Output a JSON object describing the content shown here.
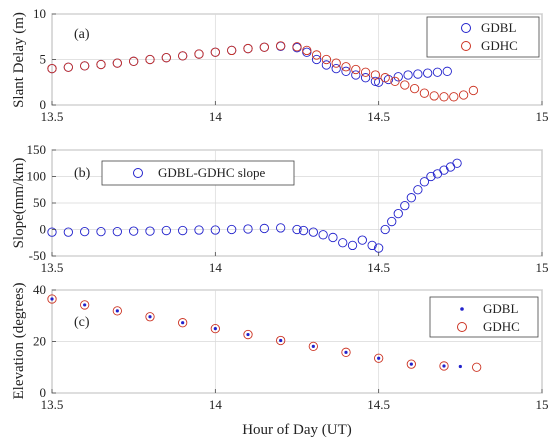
{
  "figure": {
    "xlabel": "Hour of Day (UT)"
  },
  "chart_data": [
    {
      "type": "scatter",
      "panel": "(a)",
      "ylabel": "Slant Delay (m)",
      "xlim": [
        13.5,
        15
      ],
      "ylim": [
        0,
        10
      ],
      "xticks": [
        "13.5",
        "14",
        "14.5",
        "15"
      ],
      "yticks": [
        "0",
        "5",
        "10"
      ],
      "grid": true,
      "legend_position": "top-right",
      "series": [
        {
          "name": "GDBL",
          "marker": "open-circle",
          "color": "#2222cc",
          "x": [
            13.5,
            13.55,
            13.6,
            13.65,
            13.7,
            13.75,
            13.8,
            13.85,
            13.9,
            13.95,
            14.0,
            14.05,
            14.1,
            14.15,
            14.2,
            14.25,
            14.28,
            14.31,
            14.34,
            14.37,
            14.4,
            14.43,
            14.46,
            14.49,
            14.5,
            14.53,
            14.56,
            14.59,
            14.62,
            14.65,
            14.68,
            14.71
          ],
          "y": [
            4.0,
            4.15,
            4.3,
            4.45,
            4.6,
            4.8,
            5.0,
            5.2,
            5.4,
            5.6,
            5.8,
            6.0,
            6.2,
            6.35,
            6.45,
            6.3,
            5.8,
            5.0,
            4.4,
            4.0,
            3.7,
            3.3,
            3.0,
            2.6,
            2.5,
            2.8,
            3.1,
            3.3,
            3.4,
            3.5,
            3.6,
            3.7
          ]
        },
        {
          "name": "GDHC",
          "marker": "open-circle",
          "color": "#cc3322",
          "x": [
            13.5,
            13.55,
            13.6,
            13.65,
            13.7,
            13.75,
            13.8,
            13.85,
            13.9,
            13.95,
            14.0,
            14.05,
            14.1,
            14.15,
            14.2,
            14.25,
            14.28,
            14.31,
            14.34,
            14.37,
            14.4,
            14.43,
            14.46,
            14.49,
            14.52,
            14.55,
            14.58,
            14.61,
            14.64,
            14.67,
            14.7,
            14.73,
            14.76,
            14.79
          ],
          "y": [
            4.0,
            4.15,
            4.3,
            4.45,
            4.6,
            4.8,
            5.0,
            5.2,
            5.4,
            5.6,
            5.8,
            6.0,
            6.2,
            6.35,
            6.5,
            6.4,
            6.0,
            5.5,
            5.0,
            4.6,
            4.2,
            3.9,
            3.6,
            3.3,
            3.0,
            2.6,
            2.2,
            1.8,
            1.3,
            1.0,
            0.9,
            0.9,
            1.1,
            1.6
          ]
        }
      ]
    },
    {
      "type": "scatter",
      "panel": "(b)",
      "ylabel": "Slope(mm/km)",
      "xlim": [
        13.5,
        15
      ],
      "ylim": [
        -50,
        150
      ],
      "xticks": [
        "13.5",
        "14",
        "14.5",
        "15"
      ],
      "yticks": [
        "-50",
        "0",
        "50",
        "100",
        "150"
      ],
      "grid": true,
      "legend_position": "top-left",
      "series": [
        {
          "name": "GDBL-GDHC slope",
          "marker": "open-circle",
          "color": "#2222cc",
          "x": [
            13.5,
            13.55,
            13.6,
            13.65,
            13.7,
            13.75,
            13.8,
            13.85,
            13.9,
            13.95,
            14.0,
            14.05,
            14.1,
            14.15,
            14.2,
            14.25,
            14.27,
            14.3,
            14.33,
            14.36,
            14.39,
            14.42,
            14.45,
            14.48,
            14.5,
            14.52,
            14.54,
            14.56,
            14.58,
            14.6,
            14.62,
            14.64,
            14.66,
            14.68,
            14.7,
            14.72,
            14.74
          ],
          "y": [
            -5,
            -5,
            -4,
            -4,
            -4,
            -3,
            -3,
            -2,
            -2,
            -1,
            -1,
            0,
            1,
            2,
            3,
            0,
            -2,
            -5,
            -10,
            -15,
            -25,
            -30,
            -20,
            -30,
            -35,
            0,
            15,
            30,
            45,
            60,
            75,
            90,
            100,
            105,
            112,
            118,
            125
          ]
        }
      ]
    },
    {
      "type": "scatter",
      "panel": "(c)",
      "ylabel": "Elevation (degrees)",
      "xlim": [
        13.5,
        15
      ],
      "ylim": [
        0,
        40
      ],
      "xticks": [
        "13.5",
        "14",
        "14.5",
        "15"
      ],
      "yticks": [
        "0",
        "20",
        "40"
      ],
      "grid": true,
      "legend_position": "bottom-right",
      "series": [
        {
          "name": "GDBL",
          "marker": "dot",
          "color": "#2222cc",
          "x": [
            13.5,
            13.6,
            13.7,
            13.8,
            13.9,
            14.0,
            14.1,
            14.2,
            14.3,
            14.4,
            14.5,
            14.6,
            14.7,
            14.75
          ],
          "y": [
            36.5,
            34.2,
            31.9,
            29.6,
            27.3,
            25.0,
            22.7,
            20.4,
            18.1,
            15.8,
            13.5,
            11.2,
            10.5,
            10.3
          ]
        },
        {
          "name": "GDHC",
          "marker": "open-circle",
          "color": "#cc3322",
          "x": [
            13.5,
            13.6,
            13.7,
            13.8,
            13.9,
            14.0,
            14.1,
            14.2,
            14.3,
            14.4,
            14.5,
            14.6,
            14.7,
            14.8
          ],
          "y": [
            36.5,
            34.2,
            31.9,
            29.6,
            27.3,
            25.0,
            22.7,
            20.4,
            18.1,
            15.8,
            13.5,
            11.2,
            10.5,
            10.0
          ]
        }
      ]
    }
  ]
}
